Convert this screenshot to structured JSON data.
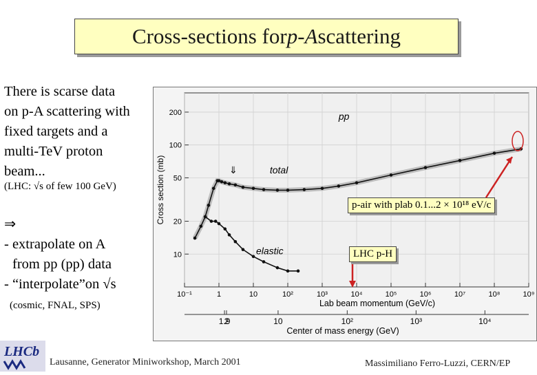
{
  "slide": {
    "title_prefix": "Cross-sections for ",
    "title_italic": "p-A",
    "title_suffix": " scattering",
    "body_lines": [
      "There is scarse data",
      "on p-A scattering with",
      "fixed targets and a",
      "multi-TeV proton",
      "beam..."
    ],
    "lhc_note": "(LHC: √s of few 100 GeV)",
    "implies_arrow": "⇒",
    "bullet_1a": "- extrapolate on A",
    "bullet_1b": "from pp (pp) data",
    "bullet_2": "- “interpolate”on √s",
    "cosmic_note": "(cosmic, FNAL, SPS)",
    "footer_left": "Lausanne, Generator Miniworkshop, March 2001",
    "footer_right": "Massimiliano Ferro-Luzzi, CERN/EP",
    "logo_text": "LHCb"
  },
  "annotations": {
    "pair_label": "p-air with plab 0.1...2 × 10¹⁸ eV/c",
    "lhc_label": "LHC p-H",
    "pair_color": "#cc2222",
    "lhc_color": "#cc2222"
  },
  "chart_data": {
    "type": "scatter",
    "title": "",
    "xlabel": "Lab beam momentum (GeV/c)",
    "ylabel": "Cross section (mb)",
    "x2label": "Center of mass energy (GeV)",
    "xscale": "log",
    "yscale": "log",
    "xlim": [
      0.1,
      1000000000
    ],
    "ylim": [
      5,
      300
    ],
    "xticks": [
      "10⁻¹",
      "1",
      "10",
      "10²",
      "10³",
      "10⁴",
      "10⁵",
      "10⁶",
      "10⁷",
      "10⁸",
      "10⁹"
    ],
    "yticks": [
      10,
      20,
      50,
      100,
      200
    ],
    "x2ticks": [
      "1.9",
      "2",
      "10",
      "10²",
      "10³",
      "10⁴"
    ],
    "x2_positions_plab": [
      1.45,
      1.66,
      52.3,
      5330,
      533000,
      53300000
    ],
    "curve_labels": {
      "reaction": "pp",
      "total": "total",
      "elastic": "elastic",
      "marker": "⇓"
    },
    "series": [
      {
        "name": "total",
        "x": [
          0.2,
          0.3,
          0.4,
          0.5,
          0.7,
          0.9,
          1.0,
          1.2,
          1.5,
          2,
          3,
          5,
          10,
          20,
          50,
          100,
          300,
          1000,
          3000,
          10000,
          100000,
          1000000,
          10000000,
          100000000,
          600000000
        ],
        "y": [
          14,
          18,
          22,
          28,
          40,
          47,
          47,
          46,
          45,
          44,
          43,
          41,
          40,
          39,
          38.5,
          38.5,
          39,
          40,
          42,
          45,
          53,
          62,
          72,
          84,
          92
        ]
      },
      {
        "name": "elastic",
        "x": [
          0.4,
          0.6,
          0.8,
          1.0,
          1.5,
          2,
          3,
          5,
          10,
          20,
          50,
          100,
          200
        ],
        "y": [
          22,
          20,
          20,
          19,
          17,
          15,
          13,
          11,
          9.5,
          8.5,
          7.5,
          7,
          7
        ]
      }
    ]
  }
}
